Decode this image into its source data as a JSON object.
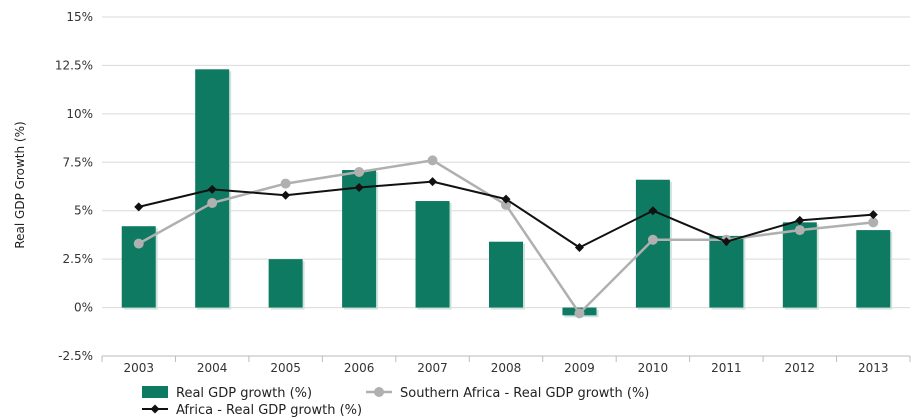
{
  "chart_data": {
    "type": "bar",
    "categories": [
      "2003",
      "2004",
      "2005",
      "2006",
      "2007",
      "2008",
      "2009",
      "2010",
      "2011",
      "2012",
      "2013"
    ],
    "series": [
      {
        "name": "Real GDP growth (%)",
        "kind": "bar",
        "color": "#0f7a62",
        "values": [
          4.2,
          12.3,
          2.5,
          7.1,
          5.5,
          3.4,
          -0.4,
          6.6,
          3.7,
          4.4,
          4.0
        ]
      },
      {
        "name": "Southern Africa - Real GDP growth (%)",
        "kind": "line",
        "color": "#b0b0b0",
        "marker": "circle",
        "values": [
          3.3,
          5.4,
          6.4,
          7.0,
          7.6,
          5.3,
          -0.3,
          3.5,
          3.5,
          4.0,
          4.4
        ]
      },
      {
        "name": "Africa - Real GDP growth (%)",
        "kind": "line",
        "color": "#111111",
        "marker": "diamond",
        "values": [
          5.2,
          6.1,
          5.8,
          6.2,
          6.5,
          5.6,
          3.1,
          5.0,
          3.4,
          4.5,
          4.8
        ]
      }
    ],
    "ylabel": "Real GDP Growth (%)",
    "xlabel": "",
    "ylim": [
      -2.5,
      15
    ],
    "yticks": [
      -2.5,
      0,
      2.5,
      5,
      7.5,
      10,
      12.5,
      15
    ],
    "ytick_labels": [
      "-2.5%",
      "0%",
      "2.5%",
      "5%",
      "7.5%",
      "10%",
      "12.5%",
      "15%"
    ],
    "grid": "horizontal",
    "legend_position": "bottom-left"
  }
}
